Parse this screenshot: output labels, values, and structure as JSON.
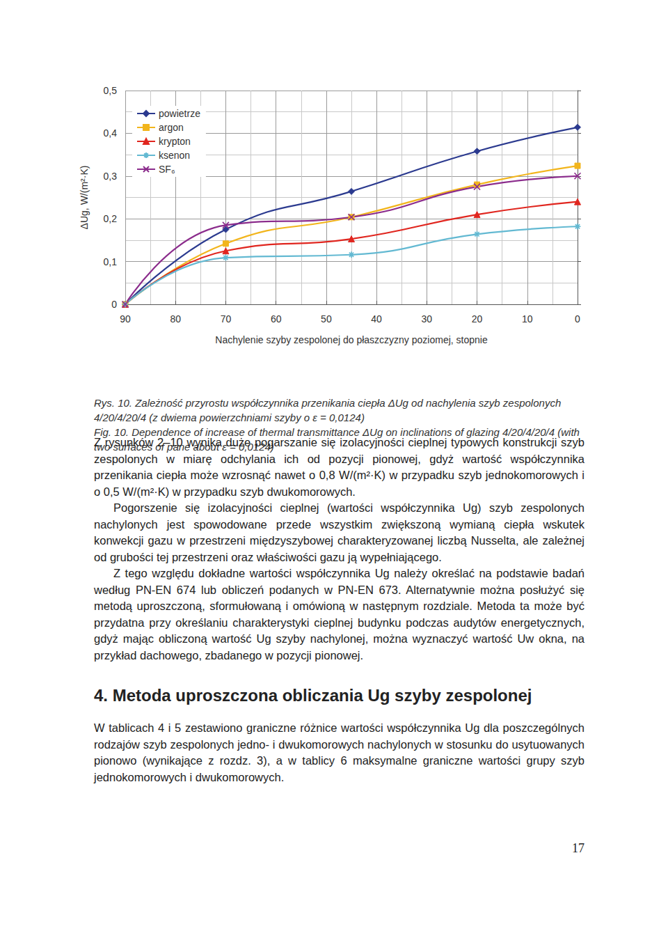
{
  "chart_data": {
    "type": "line",
    "x_label": "Nachylenie szyby zespolonej do płaszczyzny poziomej, stopnie",
    "y_label": "ΔUg, W/(m²·K)",
    "x": [
      90,
      70,
      45,
      20,
      0
    ],
    "series": [
      {
        "name": "powietrze",
        "color": "#2b3a8f",
        "marker": "diamond",
        "values": [
          0,
          0.175,
          0.264,
          0.358,
          0.414
        ]
      },
      {
        "name": "argon",
        "color": "#f2b51c",
        "marker": "square",
        "values": [
          0,
          0.142,
          0.204,
          0.28,
          0.324
        ]
      },
      {
        "name": "krypton",
        "color": "#e0261f",
        "marker": "triangle",
        "values": [
          0,
          0.125,
          0.153,
          0.21,
          0.24
        ]
      },
      {
        "name": "ksenon",
        "color": "#63b9d2",
        "marker": "star",
        "values": [
          0,
          0.109,
          0.116,
          0.164,
          0.182
        ]
      },
      {
        "name": "SF₆",
        "color": "#8b2c8c",
        "marker": "x",
        "values": [
          0,
          0.185,
          0.204,
          0.275,
          0.3
        ]
      }
    ],
    "xlim": [
      90,
      0
    ],
    "xticks": [
      90,
      80,
      70,
      60,
      50,
      40,
      30,
      20,
      10,
      0
    ],
    "ylim": [
      0,
      0.5
    ],
    "yticks": [
      0,
      {
        "value": 0.1,
        "label": "0,1"
      },
      {
        "value": 0.2,
        "label": "0,2"
      },
      {
        "value": 0.3,
        "label": "0,3"
      },
      {
        "value": 0.4,
        "label": "0,4"
      },
      {
        "value": 0.5,
        "label": "0,5"
      }
    ],
    "grid": true,
    "legend": "upper left"
  },
  "caption": [
    "Rys. 10. Zależność przyrostu współczynnika przenikania ciepła ΔUg od nachylenia szyb zespolonych 4/20/4/20/4 (z dwiema powierzchniami szyby o ε = 0,0124)",
    "Fig. 10. Dependence of increase of thermal transmittance ΔUg on inclinations of glazing 4/20/4/20/4 (with two surfaces of pane about ε = 0,0124)"
  ],
  "paragraphs_before": [
    "Z rysunków 2–10 wynika duże pogarszanie się izolacyjności cieplnej typowych konstrukcji szyb zespolonych w miarę odchylania ich od pozycji pionowej, gdyż wartość współczynnika przenikania ciepła może wzrosnąć nawet o 0,8 W/(m²·K) w przypadku szyb jednokomorowych i o 0,5 W/(m²·K) w przypadku szyb dwukomorowych.",
    "Pogorszenie się izolacyjności cieplnej (wartości współczynnika Ug) szyb zespolonych nachylonych jest spowodowane przede wszystkim zwiększoną wymianą ciepła wskutek konwekcji gazu w przestrzeni międzyszybowej charakteryzowanej liczbą Nusselta, ale zależnej od grubości tej przestrzeni oraz właściwości gazu ją wypełniającego.",
    "Z tego względu dokładne wartości współczynnika Ug należy określać na podstawie badań według PN-EN 674 lub obliczeń podanych w PN-EN 673. Alternatywnie można posłużyć się metodą uproszczoną, sformułowaną i omówioną w następnym rozdziale. Metoda ta może być przydatna przy określaniu charakterystyki cieplnej budynku podczas audytów energetycznych, gdyż mając obliczoną wartość Ug szyby nachylonej, można wyznaczyć wartość Uw okna, na przykład dachowego, zbadanego w pozycji pionowej."
  ],
  "heading": "4. Metoda uproszczona obliczania Ug szyby zespolonej",
  "paragraphs_after": [
    "W tablicach 4 i 5 zestawiono graniczne różnice wartości współczynnika Ug dla poszczególnych rodzajów szyb zespolonych jedno- i dwukomorowych nachylonych w stosunku do usytuowanych pionowo (wynikające z rozdz. 3), a w tablicy 6 maksymalne graniczne wartości grupy szyb jednokomorowych i dwukomorowych."
  ],
  "page_number": "17"
}
